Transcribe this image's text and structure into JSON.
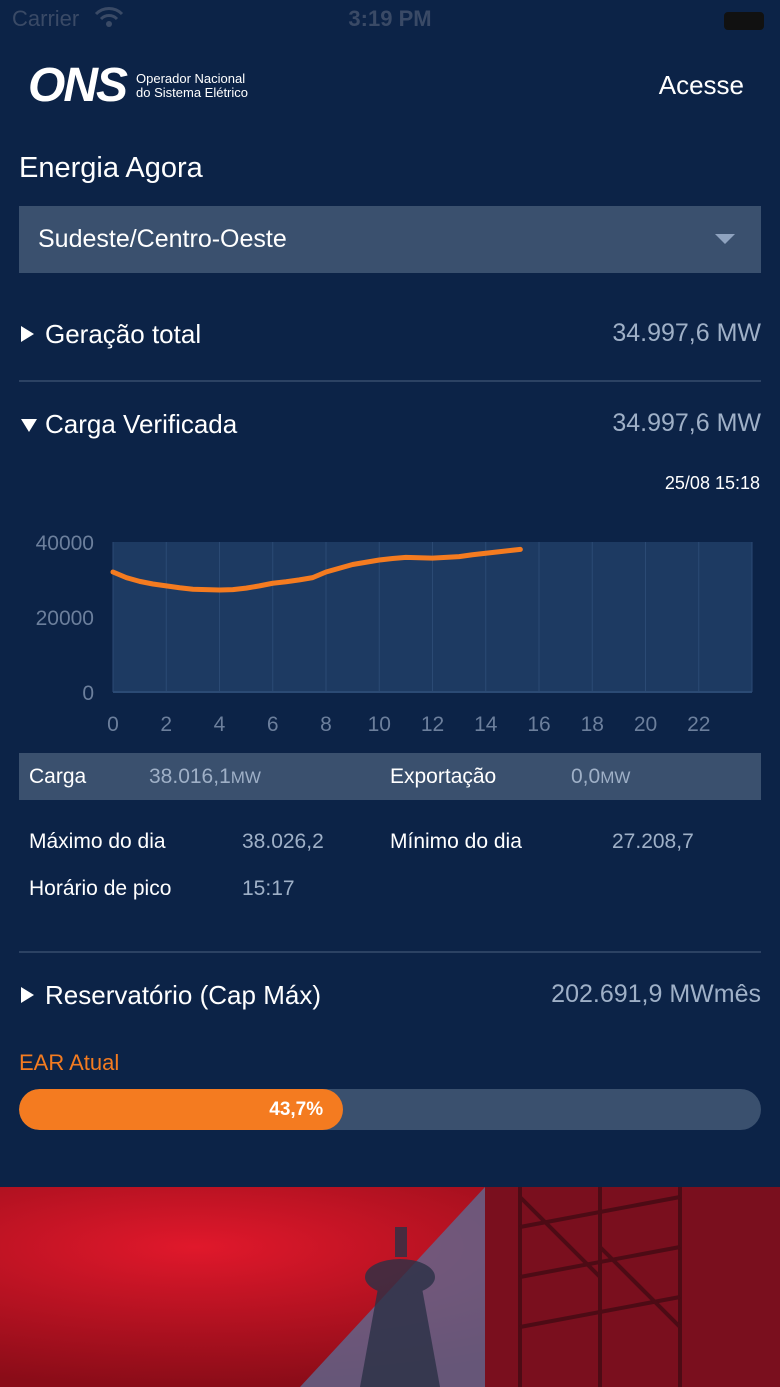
{
  "status_bar": {
    "carrier": "Carrier",
    "time": "3:19 PM"
  },
  "header": {
    "logo_text": "ONS",
    "logo_sub_line1": "Operador Nacional",
    "logo_sub_line2": "do Sistema Elétrico",
    "login_label": "Acesse"
  },
  "page_title": "Energia Agora",
  "region_select": {
    "selected": "Sudeste/Centro-Oeste"
  },
  "geracao": {
    "label": "Geração total",
    "value": "34.997,6 MW"
  },
  "carga": {
    "label": "Carga Verificada",
    "value": "34.997,6 MW",
    "timestamp": "25/08 15:18"
  },
  "chart_data": {
    "type": "line",
    "x_ticks": [
      "0",
      "2",
      "4",
      "6",
      "8",
      "10",
      "12",
      "14",
      "16",
      "18",
      "20",
      "22"
    ],
    "y_ticks": [
      "40000",
      "20000",
      "0"
    ],
    "ylim": [
      0,
      40000
    ],
    "xlim": [
      0,
      24
    ],
    "grid": true,
    "line_color": "#f47b20",
    "series": [
      {
        "x": [
          0,
          0.5,
          1,
          1.5,
          2,
          2.5,
          3,
          3.5,
          4,
          4.5,
          5,
          5.5,
          6,
          6.5,
          7,
          7.5,
          8,
          8.5,
          9,
          9.5,
          10,
          10.5,
          11,
          11.5,
          12,
          12.5,
          13,
          13.5,
          14,
          14.5,
          15,
          15.3
        ],
        "y": [
          32000,
          30500,
          29500,
          28800,
          28300,
          27800,
          27400,
          27300,
          27208,
          27300,
          27700,
          28300,
          29000,
          29400,
          29900,
          30500,
          32000,
          33000,
          34000,
          34600,
          35200,
          35600,
          35900,
          35800,
          35700,
          35900,
          36100,
          36600,
          37000,
          37400,
          37800,
          38026
        ]
      }
    ]
  },
  "carga_info": {
    "carga_label": "Carga",
    "carga_value": "38.016,1",
    "carga_unit": "MW",
    "export_label": "Exportação",
    "export_value": "0,0",
    "export_unit": "MW"
  },
  "stats": {
    "max_label": "Máximo do dia",
    "max_value": "38.026,2",
    "min_label": "Mínimo do dia",
    "min_value": "27.208,7",
    "peak_label": "Horário de pico",
    "peak_value": "15:17"
  },
  "reservatorio": {
    "label": "Reservatório (Cap Máx)",
    "value": "202.691,9 MWmês"
  },
  "ear": {
    "label": "EAR Atual",
    "percent_text": "43,7%",
    "fraction": 0.437
  }
}
